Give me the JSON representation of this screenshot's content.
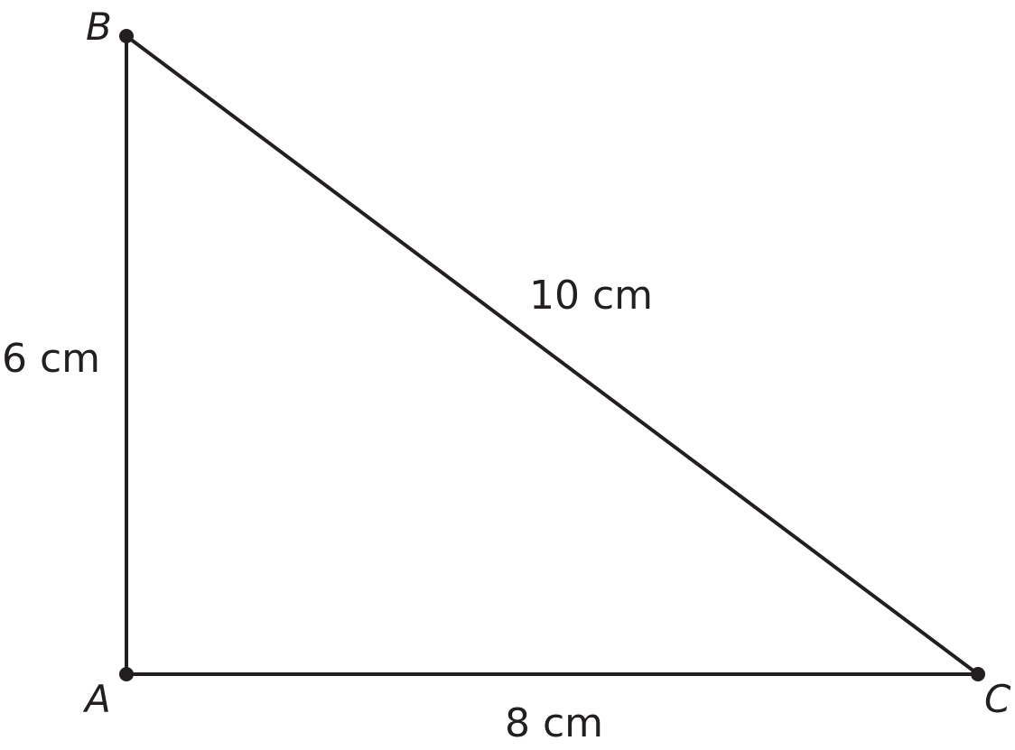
{
  "vertices": {
    "A": "A",
    "B": "B",
    "C": "C"
  },
  "sides": {
    "AB": "6 cm",
    "AC": "8 cm",
    "BC": "10 cm"
  },
  "colors": {
    "stroke": "#231f20"
  }
}
